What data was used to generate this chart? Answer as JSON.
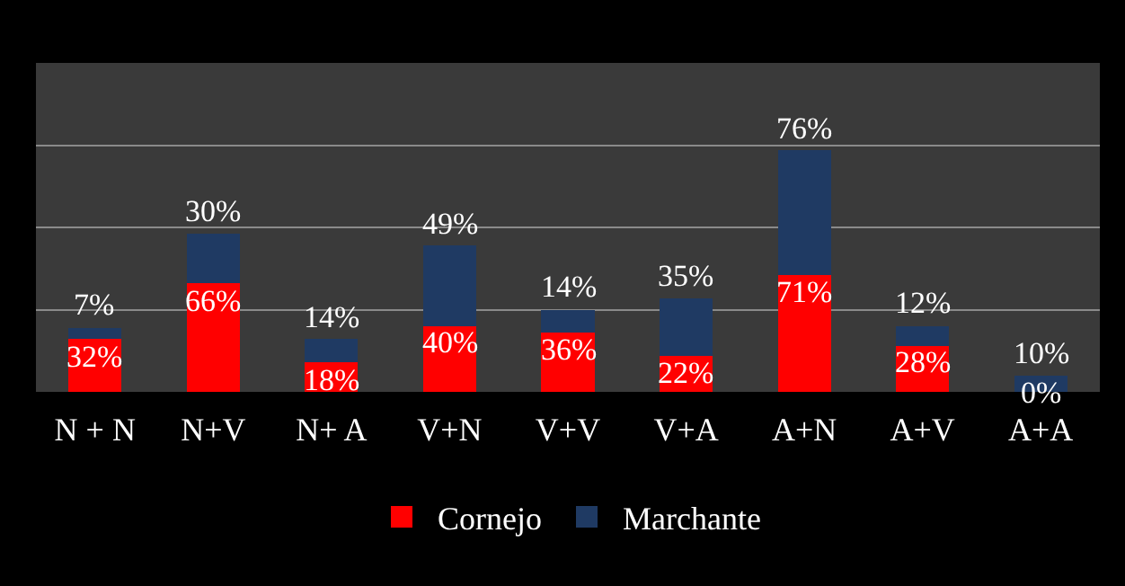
{
  "chart_data": {
    "type": "bar",
    "stacked": true,
    "categories": [
      "N + N",
      "N+V",
      "N+ A",
      "V+N",
      "V+V",
      "V+A",
      "A+N",
      "A+V",
      "A+A"
    ],
    "series": [
      {
        "name": "Cornejo",
        "color": "#ff0000",
        "values": [
          32,
          66,
          18,
          40,
          36,
          22,
          71,
          28,
          0
        ],
        "value_labels": [
          "32%",
          "66%",
          "18%",
          "40%",
          "36%",
          "22%",
          "71%",
          "28%",
          "0%"
        ]
      },
      {
        "name": "Marchante",
        "color": "#1f3a63",
        "values": [
          7,
          30,
          14,
          49,
          14,
          35,
          76,
          12,
          10
        ],
        "value_labels": [
          "7%",
          "30%",
          "14%",
          "49%",
          "14%",
          "35%",
          "76%",
          "12%",
          "10%"
        ]
      }
    ],
    "ylim": [
      0,
      200
    ],
    "yticks": [
      {
        "value": 0,
        "label": null
      },
      {
        "value": 50,
        "label": null
      },
      {
        "value": 100,
        "label": null
      },
      {
        "value": 150,
        "label": null
      },
      {
        "value": 200,
        "label": null
      }
    ],
    "grid": "y",
    "tick_labels": "x",
    "legend": "bottom"
  }
}
